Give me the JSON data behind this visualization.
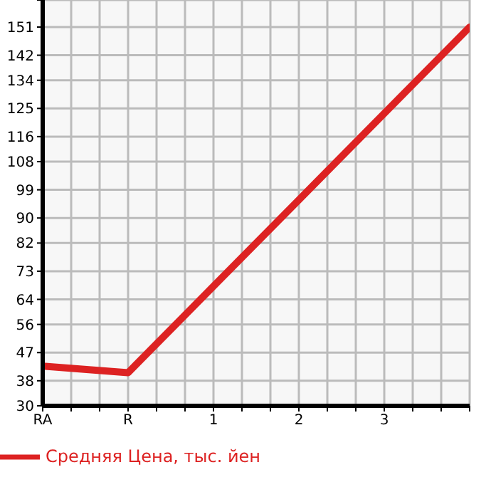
{
  "chart_data": {
    "type": "line",
    "categories": [
      "RA",
      "R",
      "1",
      "2",
      "3",
      null
    ],
    "series": [
      {
        "name": "Средняя Цена, тыс. йен",
        "color": "#dd2222",
        "values": [
          42.7,
          40.6,
          68.2,
          95.8,
          123.4,
          151
        ]
      }
    ],
    "ylim": [
      30,
      159.64
    ],
    "yticks": [
      30,
      38,
      47,
      56,
      64,
      73,
      82,
      90,
      99,
      108,
      116,
      125,
      134,
      142,
      151,
      {
        "value": 159.64,
        "label": null
      }
    ],
    "grid": true,
    "legend": "bottom left",
    "marker": "none",
    "line_style": "solid"
  }
}
